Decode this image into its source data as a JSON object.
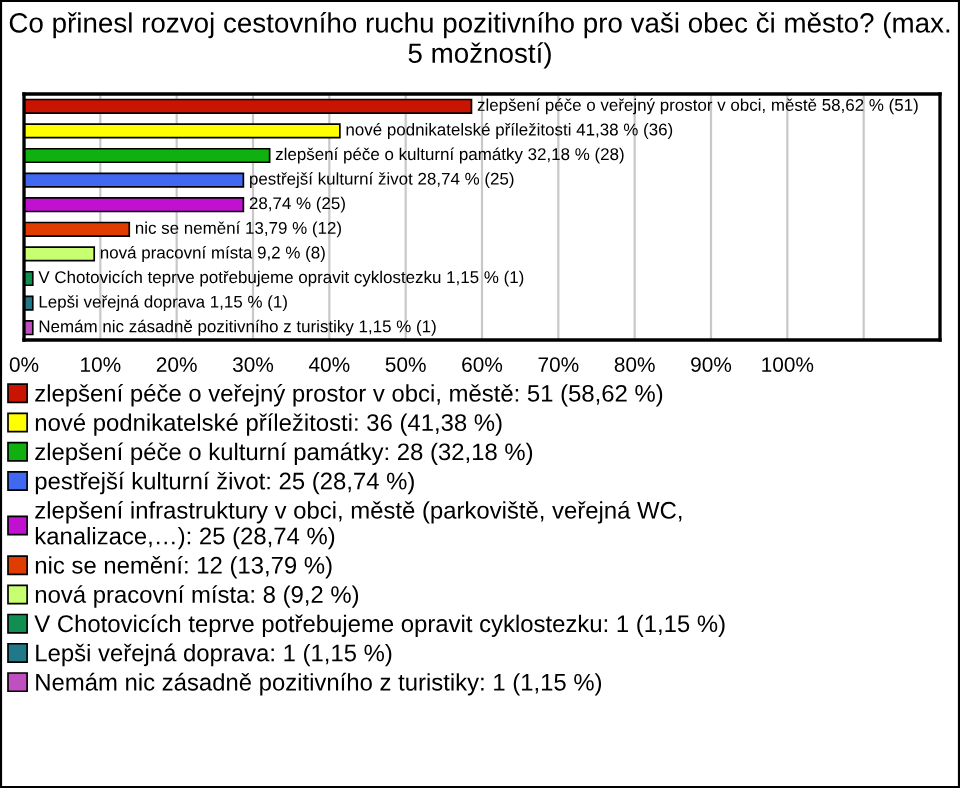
{
  "chart_data": {
    "type": "bar",
    "orientation": "horizontal",
    "title": "Co přinesl rozvoj cestovního ruchu pozitivního pro vaši obec či město? (max. 5 možností)",
    "categories": [
      null,
      null,
      null,
      null,
      null,
      null,
      null,
      null,
      null,
      null
    ],
    "series": [
      {
        "name": "zlepšení péče o veřejný prostor v obci, městě: 51 (58,62 %)",
        "color": "#c81400",
        "values": [
          58.62,
          null,
          null,
          null,
          null,
          null,
          null,
          null,
          null,
          null
        ],
        "value_labels": [
          "zlepšení péče o veřejný prostor v obci, městě 58,62 % (51)",
          null,
          null,
          null,
          null,
          null,
          null,
          null,
          null,
          null
        ]
      },
      {
        "name": "nové podnikatelské příležitosti: 36 (41,38 %)",
        "color": "#ffff00",
        "values": [
          null,
          41.38,
          null,
          null,
          null,
          null,
          null,
          null,
          null,
          null
        ],
        "value_labels": [
          null,
          "nové podnikatelské příležitosti 41,38 % (36)",
          null,
          null,
          null,
          null,
          null,
          null,
          null,
          null
        ]
      },
      {
        "name": "zlepšení péče o kulturní památky: 28 (32,18 %)",
        "color": "#10b010",
        "values": [
          null,
          null,
          32.18,
          null,
          null,
          null,
          null,
          null,
          null,
          null
        ],
        "value_labels": [
          null,
          null,
          "zlepšení péče o kulturní památky 32,18 % (28)",
          null,
          null,
          null,
          null,
          null,
          null,
          null
        ]
      },
      {
        "name": "pestřejší kulturní život: 25 (28,74 %)",
        "color": "#4068f0",
        "values": [
          null,
          null,
          null,
          28.74,
          null,
          null,
          null,
          null,
          null,
          null
        ],
        "value_labels": [
          null,
          null,
          null,
          "pestřejší kulturní život 28,74 % (25)",
          null,
          null,
          null,
          null,
          null,
          null
        ]
      },
      {
        "name": "zlepšení infrastruktury v obci, městě (parkoviště, veřejná WC,\nkanalizace,…): 25 (28,74 %)",
        "color": "#c010d0",
        "values": [
          null,
          null,
          null,
          null,
          28.74,
          null,
          null,
          null,
          null,
          null
        ],
        "value_labels": [
          null,
          null,
          null,
          null,
          "28,74 % (25)",
          null,
          null,
          null,
          null,
          null
        ]
      },
      {
        "name": "nic se nemění: 12 (13,79 %)",
        "color": "#e03c00",
        "values": [
          null,
          null,
          null,
          null,
          null,
          13.79,
          null,
          null,
          null,
          null
        ],
        "value_labels": [
          null,
          null,
          null,
          null,
          null,
          "nic se nemění 13,79 % (12)",
          null,
          null,
          null,
          null
        ]
      },
      {
        "name": "nová pracovní místa: 8 (9,2 %)",
        "color": "#c8ff70",
        "values": [
          null,
          null,
          null,
          null,
          null,
          null,
          9.2,
          null,
          null,
          null
        ],
        "value_labels": [
          null,
          null,
          null,
          null,
          null,
          null,
          "nová pracovní místa 9,2 % (8)",
          null,
          null,
          null
        ]
      },
      {
        "name": "V Chotovicích teprve potřebujeme opravit cyklostezku: 1 (1,15 %)",
        "color": "#109050",
        "values": [
          null,
          null,
          null,
          null,
          null,
          null,
          null,
          1.15,
          null,
          null
        ],
        "value_labels": [
          null,
          null,
          null,
          null,
          null,
          null,
          null,
          "V Chotovicích teprve potřebujeme opravit cyklostezku 1,15 % (1)",
          null,
          null
        ]
      },
      {
        "name": "Lepši veřejná doprava: 1 (1,15 %)",
        "color": "#207888",
        "values": [
          null,
          null,
          null,
          null,
          null,
          null,
          null,
          null,
          1.15,
          null
        ],
        "value_labels": [
          null,
          null,
          null,
          null,
          null,
          null,
          null,
          null,
          "Lepši veřejná doprava 1,15 % (1)",
          null
        ]
      },
      {
        "name": "Nemám nic zásadně pozitivního z turistiky: 1 (1,15 %)",
        "color": "#c050c0",
        "values": [
          null,
          null,
          null,
          null,
          null,
          null,
          null,
          null,
          null,
          1.15
        ],
        "value_labels": [
          null,
          null,
          null,
          null,
          null,
          null,
          null,
          null,
          null,
          "Nemám nic zásadně pozitivního z turistiky 1,15 % (1)"
        ]
      }
    ],
    "xlim": [
      0,
      120
    ],
    "xticks": [
      {
        "value": 0,
        "label": "0%"
      },
      {
        "value": 10,
        "label": "10%"
      },
      {
        "value": 20,
        "label": "20%"
      },
      {
        "value": 30,
        "label": "30%"
      },
      {
        "value": 40,
        "label": "40%"
      },
      {
        "value": 50,
        "label": "50%"
      },
      {
        "value": 60,
        "label": "60%"
      },
      {
        "value": 70,
        "label": "70%"
      },
      {
        "value": 80,
        "label": "80%"
      },
      {
        "value": 90,
        "label": "90%"
      },
      {
        "value": 100,
        "label": "100%"
      },
      {
        "value": 110,
        "label": null
      }
    ],
    "grid": "x",
    "legend": "bottom"
  }
}
